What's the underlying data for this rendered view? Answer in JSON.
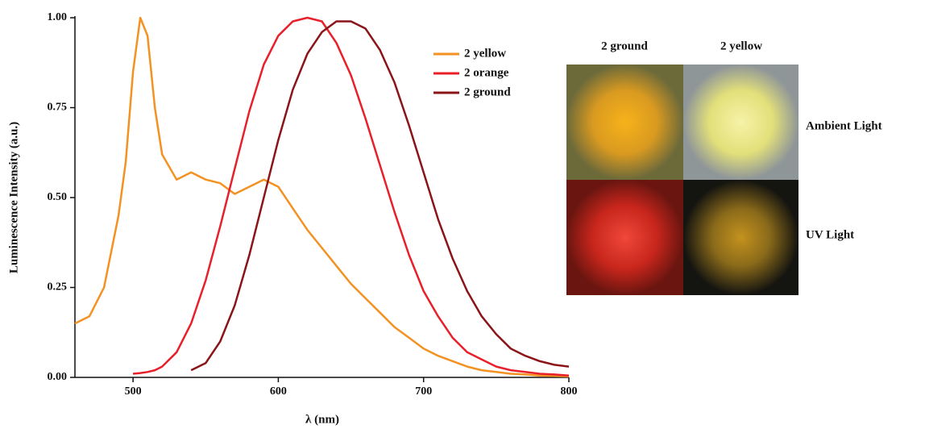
{
  "chart_data": {
    "type": "line",
    "xlabel": "λ (nm)",
    "ylabel": "Luminescence Intensity (a.u.)",
    "x": [
      460,
      470,
      480,
      490,
      495,
      500,
      505,
      510,
      515,
      520,
      530,
      540,
      550,
      560,
      570,
      580,
      590,
      600,
      610,
      620,
      630,
      640,
      650,
      660,
      670,
      680,
      690,
      700,
      710,
      720,
      730,
      740,
      750,
      760,
      770,
      780,
      790,
      800
    ],
    "series": [
      {
        "name": "2 yellow",
        "color": "#f39222",
        "values": [
          0.15,
          0.17,
          0.25,
          0.45,
          0.6,
          0.85,
          1.0,
          0.95,
          0.75,
          0.62,
          0.55,
          0.57,
          0.55,
          0.54,
          0.51,
          0.53,
          0.55,
          0.53,
          0.47,
          0.41,
          0.36,
          0.31,
          0.26,
          0.22,
          0.18,
          0.14,
          0.11,
          0.08,
          0.06,
          0.045,
          0.03,
          0.02,
          0.015,
          0.01,
          0.008,
          0.005,
          0.004,
          0.003
        ]
      },
      {
        "name": "2 orange",
        "color": "#e8202a",
        "values": [
          null,
          null,
          null,
          null,
          null,
          0.01,
          0.012,
          0.015,
          0.02,
          0.03,
          0.07,
          0.15,
          0.27,
          0.42,
          0.58,
          0.74,
          0.87,
          0.95,
          0.99,
          1.0,
          0.99,
          0.93,
          0.84,
          0.72,
          0.59,
          0.46,
          0.34,
          0.24,
          0.17,
          0.11,
          0.07,
          0.05,
          0.03,
          0.02,
          0.015,
          0.01,
          0.008,
          0.005
        ]
      },
      {
        "name": "2 ground",
        "color": "#8b1418",
        "values": [
          null,
          null,
          null,
          null,
          null,
          null,
          null,
          null,
          null,
          null,
          null,
          0.02,
          0.04,
          0.1,
          0.2,
          0.34,
          0.5,
          0.66,
          0.8,
          0.9,
          0.96,
          0.99,
          0.99,
          0.97,
          0.91,
          0.82,
          0.7,
          0.57,
          0.44,
          0.33,
          0.24,
          0.17,
          0.12,
          0.08,
          0.06,
          0.045,
          0.035,
          0.03
        ]
      }
    ],
    "xlim": [
      460,
      800
    ],
    "xticks": [
      500,
      600,
      700,
      800
    ],
    "ylim": [
      0,
      1
    ],
    "yticks": [
      {
        "value": 0,
        "label": "0.00"
      },
      {
        "value": 0.25,
        "label": "0.25"
      },
      {
        "value": 0.5,
        "label": "0.50"
      },
      {
        "value": 0.75,
        "label": "0.75"
      },
      {
        "value": 1,
        "label": "1.00"
      }
    ],
    "grid": false,
    "legend": "upper center"
  },
  "photo_panel": {
    "column_labels": [
      "2 ground",
      "2 yellow"
    ],
    "row_labels": [
      "Ambient Light",
      "UV Light"
    ]
  }
}
